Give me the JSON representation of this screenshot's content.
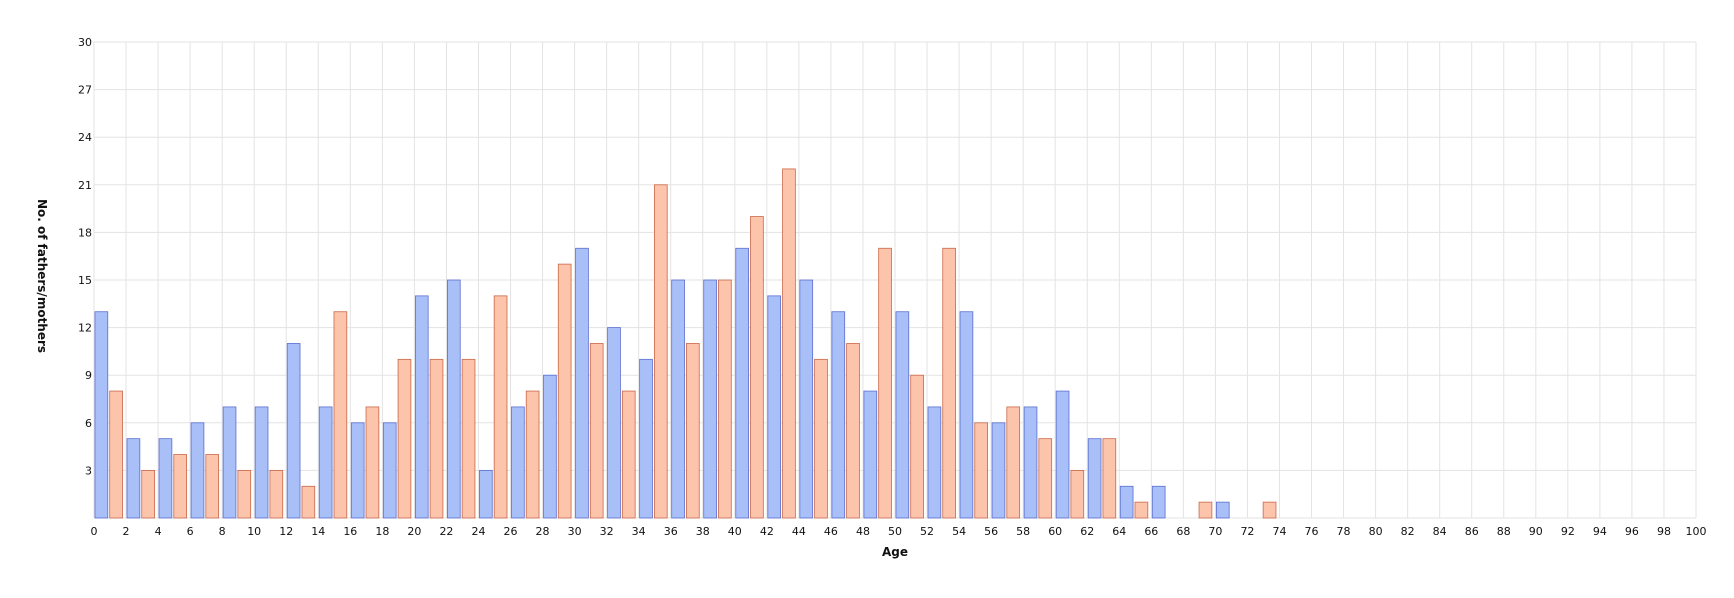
{
  "chart_data": {
    "type": "bar",
    "title": "",
    "xlabel": "Age",
    "ylabel": "No. of fathers/mothers",
    "xlim": [
      0,
      100
    ],
    "ylim": [
      0,
      30
    ],
    "x_ticks": [
      0,
      2,
      4,
      6,
      8,
      10,
      12,
      14,
      16,
      18,
      20,
      22,
      24,
      26,
      28,
      30,
      32,
      34,
      36,
      38,
      40,
      42,
      44,
      46,
      48,
      50,
      52,
      54,
      56,
      58,
      60,
      62,
      64,
      66,
      68,
      70,
      72,
      74,
      76,
      78,
      80,
      82,
      84,
      86,
      88,
      90,
      92,
      94,
      96,
      98,
      100
    ],
    "y_ticks": [
      3,
      6,
      9,
      12,
      15,
      18,
      21,
      24,
      27,
      30
    ],
    "grid": true,
    "bin_width": 2,
    "bin_starts": [
      0,
      2,
      4,
      6,
      8,
      10,
      12,
      14,
      16,
      18,
      20,
      22,
      24,
      26,
      28,
      30,
      32,
      34,
      36,
      38,
      40,
      42,
      44,
      46,
      48,
      50,
      52,
      54,
      56,
      58,
      60,
      62,
      64,
      66,
      68,
      70,
      72,
      74,
      76,
      78,
      80,
      82,
      84,
      86,
      88,
      90,
      92,
      94,
      96,
      98
    ],
    "series": [
      {
        "color": "#a9bff8",
        "stroke": "#5b6fcf",
        "values": [
          13,
          5,
          5,
          6,
          7,
          7,
          11,
          7,
          6,
          6,
          14,
          15,
          3,
          7,
          9,
          17,
          12,
          10,
          15,
          15,
          17,
          14,
          15,
          13,
          8,
          13,
          7,
          13,
          6,
          7,
          8,
          5,
          2,
          2,
          0,
          1,
          0,
          0,
          0,
          0,
          0,
          0,
          0,
          0,
          0,
          0,
          0,
          0,
          0,
          0
        ]
      },
      {
        "color": "#fbc4ab",
        "stroke": "#c9684a",
        "values": [
          8,
          3,
          4,
          4,
          3,
          3,
          2,
          13,
          7,
          10,
          10,
          10,
          14,
          8,
          16,
          11,
          8,
          21,
          11,
          15,
          19,
          22,
          10,
          11,
          17,
          9,
          17,
          6,
          7,
          5,
          3,
          5,
          1,
          0,
          1,
          0,
          1,
          0,
          0,
          0,
          0,
          0,
          0,
          0,
          0,
          0,
          0,
          0,
          0,
          0
        ]
      }
    ]
  }
}
